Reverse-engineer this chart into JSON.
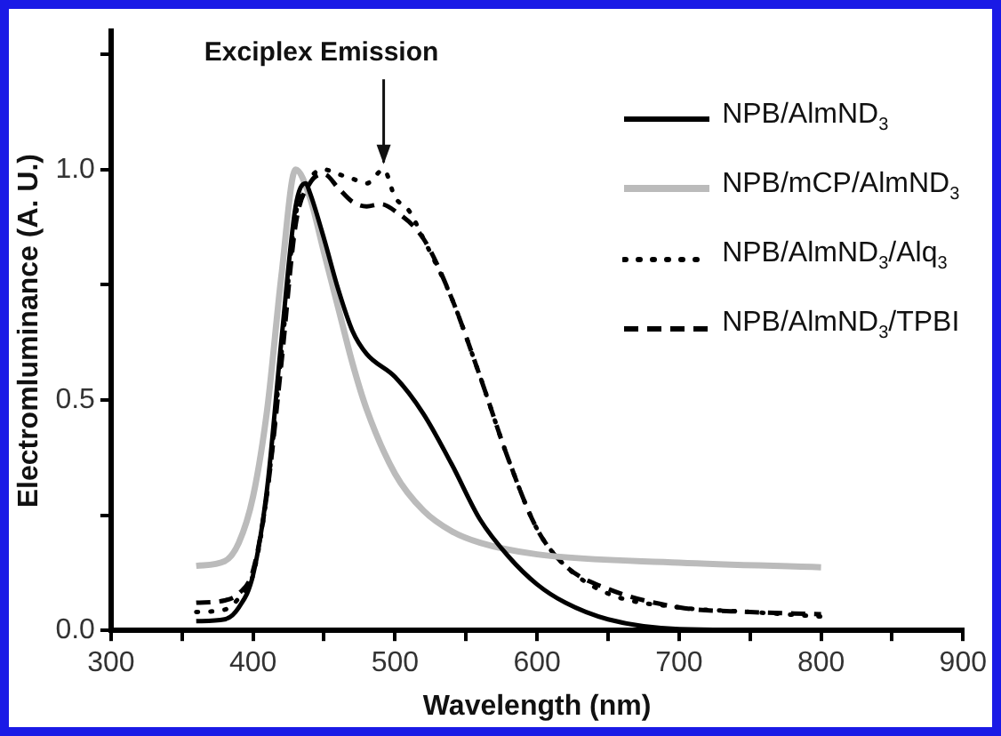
{
  "chart_data": {
    "type": "line",
    "xlabel": "Wavelength (nm)",
    "ylabel": "Electromluminance (A. U.)",
    "xlim": [
      300,
      900
    ],
    "ylim": [
      0,
      1.3
    ],
    "xticks": [
      300,
      {
        "value": 350,
        "label": null
      },
      400,
      {
        "value": 450,
        "label": null
      },
      500,
      {
        "value": 550,
        "label": null
      },
      600,
      {
        "value": 650,
        "label": null
      },
      700,
      {
        "value": 750,
        "label": null
      },
      800,
      {
        "value": 850,
        "label": null
      },
      900
    ],
    "yticks": [
      {
        "value": 0,
        "label": "0.0"
      },
      {
        "value": 0.25,
        "label": null
      },
      {
        "value": 0.5,
        "label": "0.5"
      },
      {
        "value": 0.75,
        "label": null
      },
      {
        "value": 1.0,
        "label": "1.0"
      },
      {
        "value": 1.25,
        "label": null
      }
    ],
    "grid": false,
    "legend": "top right",
    "marker": "none",
    "annotations": [
      {
        "text": "Exciplex Emission",
        "x": 492,
        "y": 1.0
      }
    ],
    "series": [
      {
        "name": "NPB/AlmND$_{3}$",
        "color": "#000000",
        "line_style": "solid",
        "x": [
          360,
          380,
          390,
          400,
          410,
          420,
          430,
          437,
          440,
          450,
          460,
          470,
          480,
          500,
          520,
          540,
          560,
          580,
          600,
          620,
          650,
          700,
          800
        ],
        "values": [
          0.02,
          0.024,
          0.05,
          0.12,
          0.31,
          0.63,
          0.92,
          0.97,
          0.95,
          0.85,
          0.74,
          0.65,
          0.6,
          0.55,
          0.47,
          0.36,
          0.24,
          0.16,
          0.1,
          0.06,
          0.024,
          0.003,
          0
        ]
      },
      {
        "name": "NPB/mCP/AlmND$_{3}$",
        "color": "#bbbbbb",
        "line_style": "solid",
        "x": [
          360,
          380,
          390,
          400,
          410,
          420,
          430,
          440,
          450,
          460,
          470,
          480,
          500,
          520,
          540,
          560,
          600,
          700,
          800
        ],
        "values": [
          0.14,
          0.15,
          0.19,
          0.29,
          0.48,
          0.77,
          1.0,
          0.94,
          0.82,
          0.7,
          0.58,
          0.48,
          0.34,
          0.26,
          0.215,
          0.19,
          0.165,
          0.147,
          0.137
        ]
      },
      {
        "name": "NPB/AlmND$_{3}$/Alq$_{3}$",
        "color": "#000000",
        "line_style": "dotted",
        "x": [
          360,
          380,
          390,
          400,
          410,
          420,
          430,
          440,
          450,
          460,
          470,
          480,
          492,
          500,
          510,
          520,
          540,
          560,
          580,
          600,
          620,
          650,
          700,
          750,
          800
        ],
        "values": [
          0.04,
          0.045,
          0.07,
          0.12,
          0.3,
          0.6,
          0.9,
          0.98,
          1.0,
          0.99,
          0.98,
          0.97,
          1.0,
          0.94,
          0.91,
          0.85,
          0.72,
          0.55,
          0.37,
          0.22,
          0.14,
          0.08,
          0.05,
          0.04,
          0.03
        ]
      },
      {
        "name": "NPB/AlmND$_{3}$/TPBI",
        "color": "#000000",
        "line_style": "dashed",
        "x": [
          360,
          380,
          390,
          400,
          410,
          420,
          430,
          440,
          450,
          460,
          470,
          480,
          490,
          500,
          520,
          540,
          560,
          580,
          600,
          620,
          650,
          700,
          750,
          800
        ],
        "values": [
          0.06,
          0.065,
          0.08,
          0.13,
          0.3,
          0.58,
          0.88,
          0.97,
          0.99,
          0.96,
          0.93,
          0.92,
          0.925,
          0.91,
          0.85,
          0.72,
          0.55,
          0.37,
          0.22,
          0.14,
          0.09,
          0.05,
          0.04,
          0.035
        ]
      }
    ]
  }
}
